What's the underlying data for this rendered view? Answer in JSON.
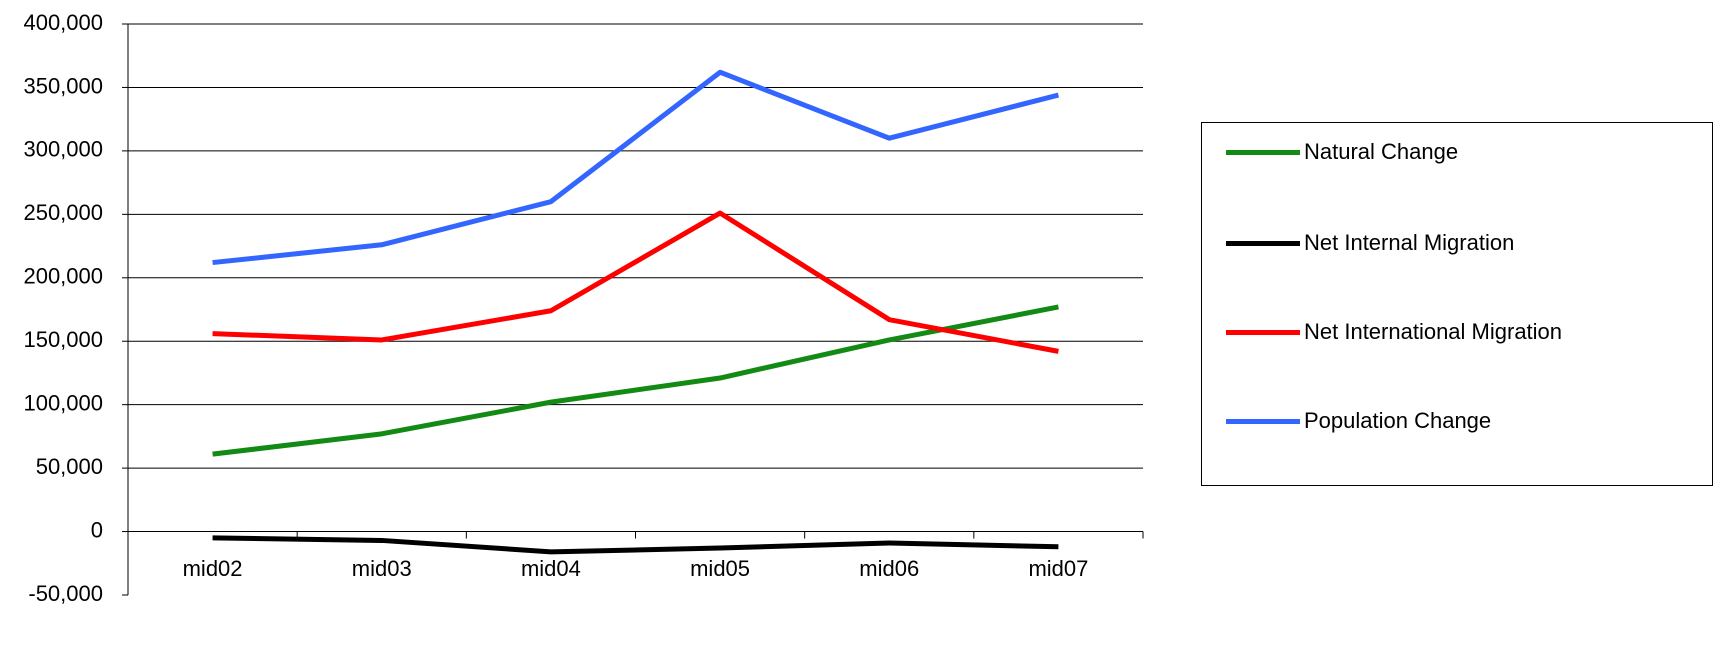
{
  "chart_data": {
    "type": "line",
    "categories": [
      "mid02",
      "mid03",
      "mid04",
      "mid05",
      "mid06",
      "mid07"
    ],
    "series": [
      {
        "name": "Natural Change",
        "color": "#138a13",
        "values": [
          61000,
          77000,
          102000,
          121000,
          151000,
          177000
        ]
      },
      {
        "name": "Net Internal Migration",
        "color": "#000000",
        "values": [
          -5000,
          -7000,
          -16000,
          -13000,
          -9000,
          -12000
        ]
      },
      {
        "name": "Net International Migration",
        "color": "#ff0000",
        "values": [
          156000,
          151000,
          174000,
          251000,
          167000,
          142000
        ]
      },
      {
        "name": "Population Change",
        "color": "#3366ff",
        "values": [
          212000,
          226000,
          260000,
          362000,
          310000,
          344000
        ]
      }
    ],
    "ylim": [
      -50000,
      400000
    ],
    "yticks": [
      {
        "value": -50000,
        "label": "-50,000"
      },
      0,
      {
        "value": 50000,
        "label": "50,000"
      },
      {
        "value": 100000,
        "label": "100,000"
      },
      {
        "value": 150000,
        "label": "150,000"
      },
      {
        "value": 200000,
        "label": "200,000"
      },
      {
        "value": 250000,
        "label": "250,000"
      },
      {
        "value": 300000,
        "label": "300,000"
      },
      {
        "value": 350000,
        "label": "350,000"
      },
      {
        "value": 400000,
        "label": "400,000"
      }
    ],
    "grid": true,
    "legend": "right"
  }
}
